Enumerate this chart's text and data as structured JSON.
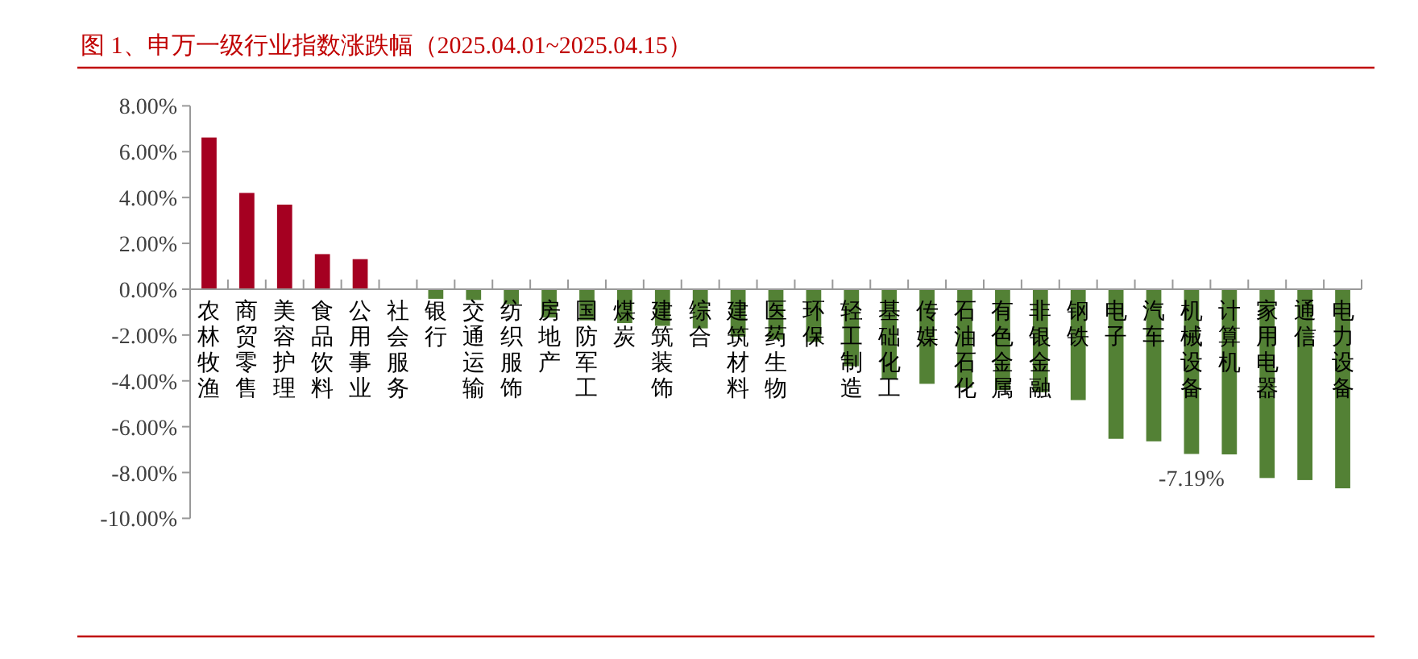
{
  "chart_data": {
    "type": "bar",
    "title": "图 1、申万一级行业指数涨跌幅（2025.04.01~2025.04.15）",
    "categories": [
      "农林牧渔",
      "商贸零售",
      "美容护理",
      "食品饮料",
      "公用事业",
      "社会服务",
      "银行",
      "交通运输",
      "纺织服饰",
      "房地产",
      "国防军工",
      "煤炭",
      "建筑装饰",
      "综合",
      "建筑材料",
      "医药生物",
      "环保",
      "轻工制造",
      "基础化工",
      "传媒",
      "石油石化",
      "有色金属",
      "非银金融",
      "钢铁",
      "电子",
      "汽车",
      "机械设备",
      "计算机",
      "家用电器",
      "通信",
      "电力设备"
    ],
    "values": [
      6.62,
      4.2,
      3.69,
      1.53,
      1.31,
      0,
      -0.42,
      -0.47,
      -0.66,
      -1.24,
      -1.36,
      -1.48,
      -1.6,
      -1.71,
      -2.07,
      -2.2,
      -2.3,
      -3.36,
      -3.94,
      -4.13,
      -4.3,
      -4.4,
      -4.5,
      -4.84,
      -6.53,
      -6.64,
      -7.19,
      -7.21,
      -8.24,
      -8.33,
      -8.69
    ],
    "colors": [
      "#a50021",
      "#a50021",
      "#a50021",
      "#a50021",
      "#a50021",
      "#a50021",
      "#538135",
      "#538135",
      "#538135",
      "#538135",
      "#538135",
      "#538135",
      "#538135",
      "#538135",
      "#538135",
      "#538135",
      "#538135",
      "#538135",
      "#538135",
      "#538135",
      "#538135",
      "#538135",
      "#538135",
      "#538135",
      "#538135",
      "#538135",
      "#538135",
      "#538135",
      "#538135",
      "#538135",
      "#538135"
    ],
    "value_labels": [
      null,
      null,
      null,
      null,
      null,
      null,
      null,
      null,
      null,
      null,
      null,
      null,
      null,
      null,
      null,
      null,
      null,
      null,
      null,
      null,
      null,
      null,
      null,
      null,
      null,
      null,
      "-7.19%",
      null,
      null,
      null,
      null
    ],
    "ylim": [
      -10,
      8
    ],
    "yticks": [
      {
        "value": 8,
        "label": "8.00%"
      },
      {
        "value": 6,
        "label": "6.00%"
      },
      {
        "value": 4,
        "label": "4.00%"
      },
      {
        "value": 2,
        "label": "2.00%"
      },
      {
        "value": 0,
        "label": "0.00%"
      },
      {
        "value": -2,
        "label": "-2.00%"
      },
      {
        "value": -4,
        "label": "-4.00%"
      },
      {
        "value": -6,
        "label": "-6.00%"
      },
      {
        "value": -8,
        "label": "-8.00%"
      },
      {
        "value": -10,
        "label": "-10.00%"
      }
    ],
    "grid": false
  }
}
